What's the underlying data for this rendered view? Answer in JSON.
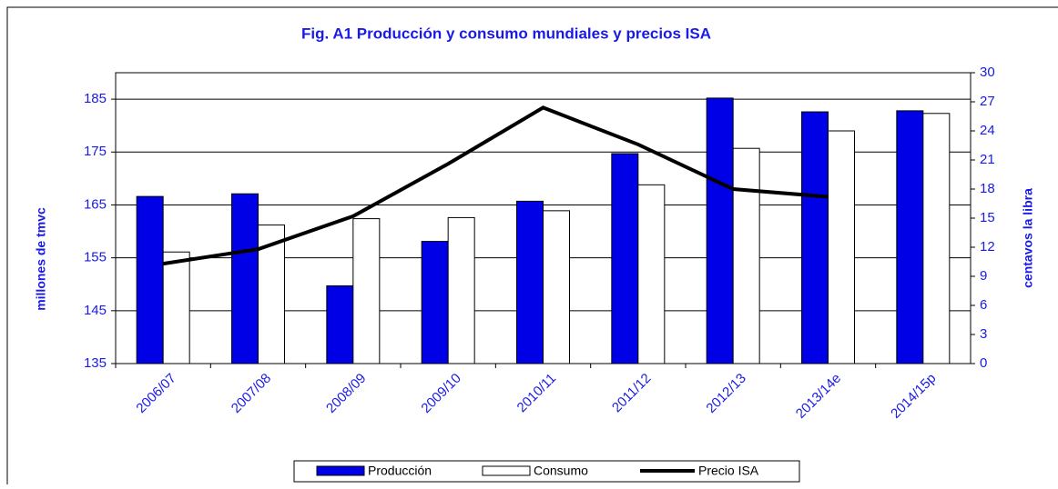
{
  "chart_data": {
    "type": "bar_line",
    "title": "Fig. A1   Producción y consumo mundiales y precios ISA",
    "categories": [
      "2006/07",
      "2007/08",
      "2008/09",
      "2009/10",
      "2010/11",
      "2011/12",
      "2012/13",
      "2013/14e",
      "2014/15p"
    ],
    "series": [
      {
        "name": "Producción",
        "type": "bar",
        "color": "#0000e6",
        "values": [
          166.6,
          167.1,
          149.7,
          158.1,
          165.7,
          174.7,
          185.2,
          182.6,
          182.8
        ]
      },
      {
        "name": "Consumo",
        "type": "bar",
        "color": "#ffffff",
        "values": [
          156.1,
          161.2,
          162.4,
          162.6,
          163.9,
          168.8,
          175.7,
          179.0,
          182.3
        ]
      },
      {
        "name": "Precio ISA",
        "type": "line",
        "axis": "y2",
        "color": "#000000",
        "values": [
          10.3,
          11.8,
          15.2,
          20.6,
          26.4,
          22.6,
          18.0,
          17.2,
          null
        ]
      }
    ],
    "y_label": "millones de tmvc",
    "y2_label": "centavos la libra",
    "ylim": [
      135,
      190
    ],
    "yticks": [
      135,
      145,
      155,
      165,
      175,
      185
    ],
    "y2lim": [
      0,
      30
    ],
    "y2ticks": [
      0,
      3,
      6,
      9,
      12,
      15,
      18,
      21,
      24,
      27,
      30
    ],
    "grid": true,
    "legend": "bottom"
  }
}
